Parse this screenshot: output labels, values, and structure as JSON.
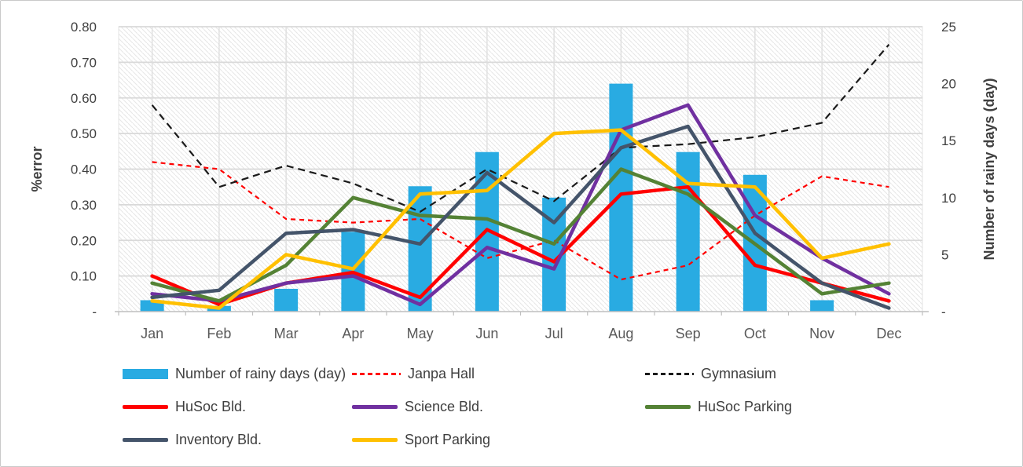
{
  "figure": {
    "left_axis_title": "%error",
    "right_axis_title": "Number of rainy days (day)",
    "left_ticks": [
      "0.80",
      "0.70",
      "0.60",
      "0.50",
      "0.40",
      "0.30",
      "0.20",
      "0.10",
      "-"
    ],
    "right_ticks": [
      "25",
      "20",
      "15",
      "10",
      "5",
      "-"
    ]
  },
  "chart_data": {
    "type": "combo-bar-line",
    "categories": [
      "Jan",
      "Feb",
      "Mar",
      "Apr",
      "May",
      "Jun",
      "Jul",
      "Aug",
      "Sep",
      "Oct",
      "Nov",
      "Dec"
    ],
    "bar_series": {
      "name": "Number of rainy days (day)",
      "axis": "right",
      "color": "#29ABE2",
      "values": [
        1,
        0.5,
        2,
        7,
        11,
        14,
        10,
        20,
        14,
        12,
        1,
        0
      ]
    },
    "line_series": [
      {
        "name": "Janpa Hall",
        "color": "#FF0000",
        "dash": true,
        "width": 2.2,
        "values": [
          0.42,
          0.4,
          0.26,
          0.25,
          0.26,
          0.15,
          0.2,
          0.09,
          0.13,
          0.27,
          0.38,
          0.35
        ]
      },
      {
        "name": "Gymnasium",
        "color": "#1A1A1A",
        "dash": true,
        "width": 2.2,
        "values": [
          0.58,
          0.35,
          0.41,
          0.36,
          0.28,
          0.4,
          0.31,
          0.46,
          0.47,
          0.49,
          0.53,
          0.75
        ]
      },
      {
        "name": "HuSoc Bld.",
        "color": "#FF0000",
        "dash": false,
        "width": 4.5,
        "values": [
          0.1,
          0.02,
          0.08,
          0.11,
          0.04,
          0.23,
          0.14,
          0.33,
          0.35,
          0.13,
          0.08,
          0.03
        ]
      },
      {
        "name": "Science Bld.",
        "color": "#7030A0",
        "dash": false,
        "width": 4.5,
        "values": [
          0.05,
          0.03,
          0.08,
          0.1,
          0.02,
          0.18,
          0.12,
          0.51,
          0.58,
          0.27,
          0.15,
          0.05
        ]
      },
      {
        "name": "HuSoc Parking",
        "color": "#548235",
        "dash": false,
        "width": 4.5,
        "values": [
          0.08,
          0.03,
          0.13,
          0.32,
          0.27,
          0.26,
          0.19,
          0.4,
          0.33,
          0.19,
          0.05,
          0.08
        ]
      },
      {
        "name": "Inventory Bld.",
        "color": "#44546A",
        "dash": false,
        "width": 4.5,
        "values": [
          0.04,
          0.06,
          0.22,
          0.23,
          0.19,
          0.39,
          0.25,
          0.46,
          0.52,
          0.22,
          0.08,
          0.01
        ]
      },
      {
        "name": "Sport Parking",
        "color": "#FFC000",
        "dash": false,
        "width": 4.5,
        "values": [
          0.03,
          0.01,
          0.16,
          0.12,
          0.33,
          0.34,
          0.5,
          0.51,
          0.36,
          0.35,
          0.15,
          0.19
        ]
      }
    ],
    "left_axis": {
      "label": "%error",
      "min": 0,
      "max": 0.8,
      "step": 0.1
    },
    "right_axis": {
      "label": "Number of rainy days (day)",
      "min": 0,
      "max": 25,
      "step": 5
    },
    "grid": true,
    "plot_background": "diagonal-hatch",
    "legend_position": "bottom"
  },
  "legend": {
    "items": [
      {
        "label": "Number of rainy days (day)",
        "swatch": "bar",
        "color": "#29ABE2",
        "row": 0,
        "col": 0
      },
      {
        "label": "Janpa Hall",
        "swatch": "dash",
        "color": "#FF0000",
        "row": 0,
        "col": 1
      },
      {
        "label": "Gymnasium",
        "swatch": "dash",
        "color": "#1A1A1A",
        "row": 0,
        "col": 2
      },
      {
        "label": "HuSoc Bld.",
        "swatch": "line",
        "color": "#FF0000",
        "row": 1,
        "col": 0
      },
      {
        "label": "Science Bld.",
        "swatch": "line",
        "color": "#7030A0",
        "row": 1,
        "col": 1
      },
      {
        "label": "HuSoc Parking",
        "swatch": "line",
        "color": "#548235",
        "row": 1,
        "col": 2
      },
      {
        "label": "Inventory Bld.",
        "swatch": "line",
        "color": "#44546A",
        "row": 2,
        "col": 0
      },
      {
        "label": "Sport Parking",
        "swatch": "line",
        "color": "#FFC000",
        "row": 2,
        "col": 1
      }
    ]
  }
}
